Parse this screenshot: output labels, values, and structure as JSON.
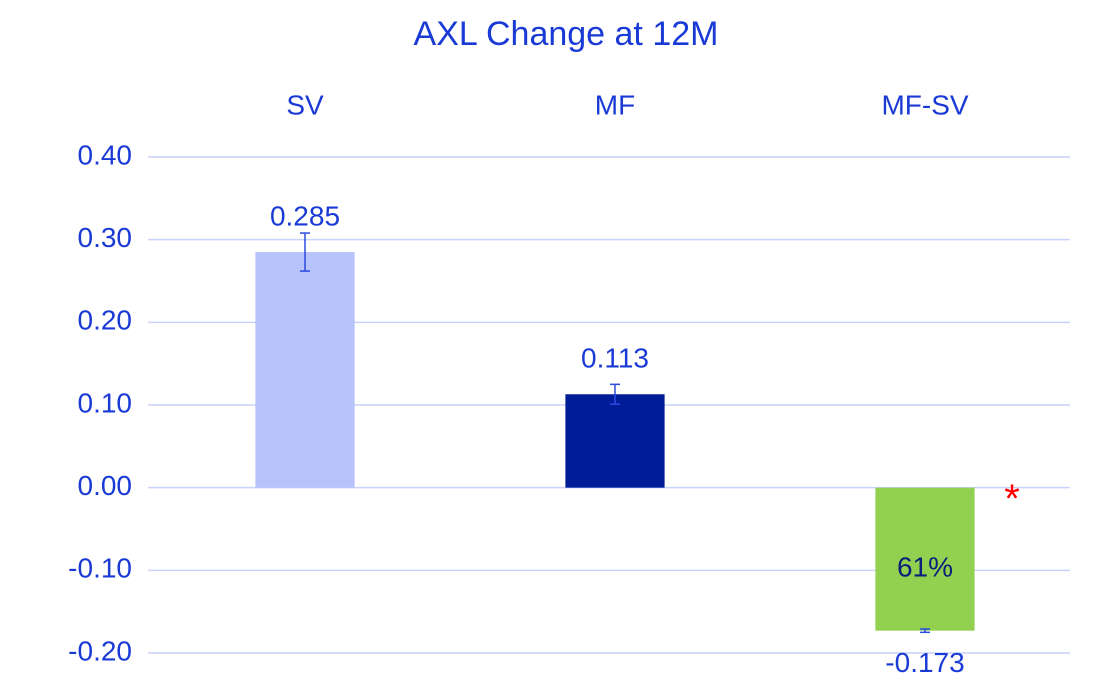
{
  "chart_data": {
    "type": "bar",
    "title": "AXL Change at 12M",
    "categories": [
      "SV",
      "MF",
      "MF-SV"
    ],
    "values": [
      0.285,
      0.113,
      -0.173
    ],
    "errors": [
      0.023,
      0.012,
      0.002
    ],
    "colors": [
      "#b7c3fb",
      "#001c96",
      "#92d050"
    ],
    "ylim": [
      -0.2,
      0.4
    ],
    "yticks": [
      {
        "value": -0.2,
        "label": "-0.20"
      },
      {
        "value": -0.1,
        "label": "-0.10"
      },
      {
        "value": 0,
        "label": "0.00"
      },
      {
        "value": 0.1,
        "label": "0.10"
      },
      {
        "value": 0.2,
        "label": "0.20"
      },
      {
        "value": 0.3,
        "label": "0.30"
      },
      {
        "value": 0.4,
        "label": "0.40"
      }
    ],
    "grid": true,
    "annotations": [
      {
        "text": "61%",
        "color": "#0b1f7a"
      },
      {
        "text": "*",
        "color": "#ff0000"
      }
    ]
  }
}
